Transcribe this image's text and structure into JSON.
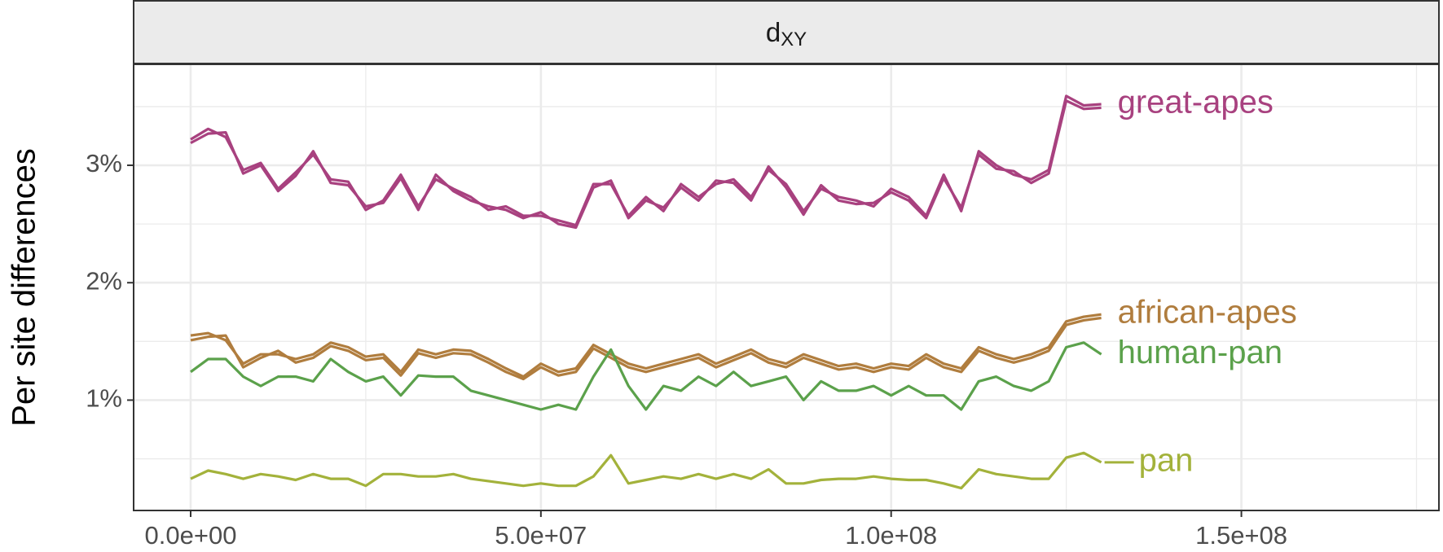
{
  "chart_data": {
    "type": "line",
    "strip": "d",
    "strip_subscript": "XY",
    "ylabel": "Per site differences",
    "x": [
      0,
      2500000,
      5000000,
      7500000,
      10000000,
      12500000,
      15000000,
      17500000,
      20000000,
      22500000,
      25000000,
      27500000,
      30000000,
      32500000,
      35000000,
      37500000,
      40000000,
      42500000,
      45000000,
      47500000,
      50000000,
      52500000,
      55000000,
      57500000,
      60000000,
      62500000,
      65000000,
      67500000,
      70000000,
      72500000,
      75000000,
      77500000,
      80000000,
      82500000,
      85000000,
      87500000,
      90000000,
      92500000,
      95000000,
      97500000,
      100000000,
      102500000,
      105000000,
      107500000,
      110000000,
      112500000,
      115000000,
      117500000,
      120000000,
      122500000,
      125000000,
      127500000,
      130000000
    ],
    "series": [
      {
        "name": "great-apes",
        "color": "#a8417f",
        "lines": [
          [
            3.22,
            3.31,
            3.24,
            2.96,
            3.02,
            2.8,
            2.94,
            3.09,
            2.88,
            2.86,
            2.62,
            2.7,
            2.92,
            2.65,
            2.88,
            2.8,
            2.73,
            2.62,
            2.65,
            2.57,
            2.57,
            2.53,
            2.49,
            2.84,
            2.84,
            2.57,
            2.73,
            2.61,
            2.84,
            2.73,
            2.84,
            2.88,
            2.73,
            2.96,
            2.84,
            2.61,
            2.8,
            2.73,
            2.7,
            2.65,
            2.8,
            2.73,
            2.57,
            2.92,
            2.61,
            3.12,
            3.0,
            2.92,
            2.88,
            2.96,
            3.59,
            3.51,
            3.52
          ],
          [
            3.19,
            3.27,
            3.28,
            2.93,
            3.0,
            2.78,
            2.91,
            3.12,
            2.85,
            2.83,
            2.65,
            2.68,
            2.89,
            2.62,
            2.92,
            2.78,
            2.7,
            2.65,
            2.62,
            2.55,
            2.6,
            2.5,
            2.47,
            2.81,
            2.87,
            2.55,
            2.7,
            2.64,
            2.81,
            2.7,
            2.87,
            2.85,
            2.7,
            2.99,
            2.81,
            2.58,
            2.83,
            2.7,
            2.67,
            2.68,
            2.77,
            2.7,
            2.55,
            2.89,
            2.64,
            3.09,
            2.97,
            2.95,
            2.85,
            2.93,
            3.55,
            3.48,
            3.49
          ]
        ]
      },
      {
        "name": "african-apes",
        "color": "#b07d3e",
        "lines": [
          [
            1.55,
            1.57,
            1.51,
            1.31,
            1.39,
            1.39,
            1.35,
            1.39,
            1.49,
            1.45,
            1.37,
            1.39,
            1.24,
            1.43,
            1.39,
            1.43,
            1.42,
            1.35,
            1.27,
            1.2,
            1.31,
            1.24,
            1.27,
            1.47,
            1.39,
            1.31,
            1.27,
            1.31,
            1.35,
            1.39,
            1.31,
            1.37,
            1.43,
            1.35,
            1.31,
            1.39,
            1.34,
            1.29,
            1.31,
            1.27,
            1.31,
            1.29,
            1.39,
            1.31,
            1.27,
            1.45,
            1.39,
            1.35,
            1.39,
            1.45,
            1.67,
            1.71,
            1.73
          ],
          [
            1.51,
            1.54,
            1.55,
            1.28,
            1.36,
            1.42,
            1.32,
            1.36,
            1.46,
            1.42,
            1.34,
            1.36,
            1.21,
            1.4,
            1.36,
            1.4,
            1.39,
            1.32,
            1.24,
            1.18,
            1.28,
            1.21,
            1.24,
            1.44,
            1.36,
            1.28,
            1.24,
            1.28,
            1.32,
            1.36,
            1.28,
            1.34,
            1.4,
            1.32,
            1.28,
            1.36,
            1.31,
            1.26,
            1.28,
            1.24,
            1.28,
            1.26,
            1.36,
            1.28,
            1.24,
            1.42,
            1.36,
            1.32,
            1.36,
            1.42,
            1.64,
            1.68,
            1.7
          ]
        ]
      },
      {
        "name": "human-pan",
        "color": "#5ba14b",
        "lines": [
          [
            1.24,
            1.35,
            1.35,
            1.2,
            1.12,
            1.2,
            1.2,
            1.16,
            1.35,
            1.24,
            1.16,
            1.2,
            1.04,
            1.21,
            1.2,
            1.2,
            1.08,
            1.04,
            1.0,
            0.96,
            0.92,
            0.96,
            0.92,
            1.2,
            1.43,
            1.12,
            0.92,
            1.12,
            1.08,
            1.2,
            1.12,
            1.24,
            1.12,
            1.16,
            1.2,
            1.0,
            1.16,
            1.08,
            1.08,
            1.12,
            1.04,
            1.12,
            1.04,
            1.04,
            0.92,
            1.16,
            1.2,
            1.12,
            1.08,
            1.16,
            1.45,
            1.49,
            1.39
          ]
        ]
      },
      {
        "name": "pan",
        "color": "#a3b23b",
        "lines": [
          [
            0.33,
            0.4,
            0.37,
            0.33,
            0.37,
            0.35,
            0.32,
            0.37,
            0.33,
            0.33,
            0.27,
            0.37,
            0.37,
            0.35,
            0.35,
            0.37,
            0.33,
            0.31,
            0.29,
            0.27,
            0.29,
            0.27,
            0.27,
            0.35,
            0.53,
            0.29,
            0.32,
            0.35,
            0.33,
            0.37,
            0.33,
            0.37,
            0.33,
            0.41,
            0.29,
            0.29,
            0.32,
            0.33,
            0.33,
            0.35,
            0.33,
            0.32,
            0.32,
            0.29,
            0.25,
            0.41,
            0.37,
            0.35,
            0.33,
            0.33,
            0.51,
            0.55,
            0.47
          ]
        ]
      }
    ],
    "xlim": [
      -8140000,
      178200000
    ],
    "ylim": [
      0.06,
      3.86
    ],
    "xticks": [
      {
        "value": 0,
        "label": "0.0e+00"
      },
      {
        "value": 50000000,
        "label": "5.0e+07"
      },
      {
        "value": 100000000,
        "label": "1.0e+08"
      },
      {
        "value": 150000000,
        "label": "1.5e+08"
      }
    ],
    "yticks": [
      {
        "value": 1,
        "label": "1%"
      },
      {
        "value": 2,
        "label": "2%"
      },
      {
        "value": 3,
        "label": "3%"
      }
    ],
    "minor_xticks": [
      25000000,
      75000000,
      125000000,
      175000000
    ],
    "minor_yticks": [
      0.5,
      1.5,
      2.5,
      3.5
    ],
    "grid": true
  }
}
